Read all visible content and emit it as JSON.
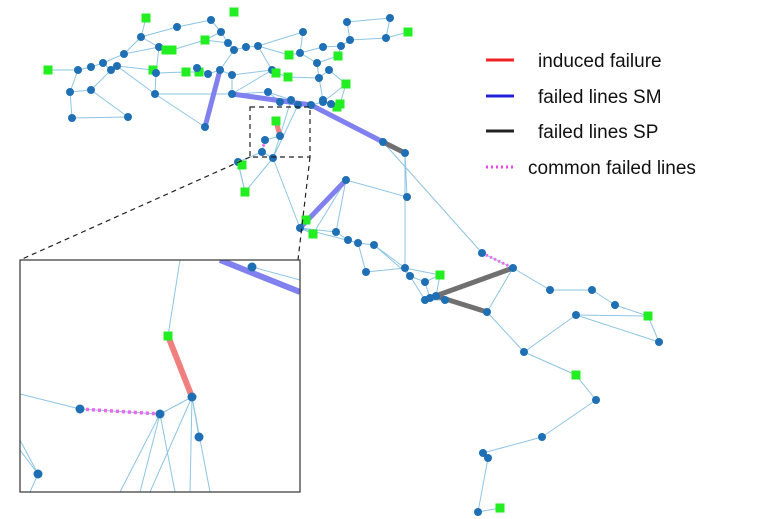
{
  "legend": [
    {
      "key": "induced_failure",
      "label": "induced failure",
      "color": "#ee2222",
      "style": "solid"
    },
    {
      "key": "failed_sm",
      "label": "failed lines SM",
      "color": "#2222dd",
      "style": "solid"
    },
    {
      "key": "failed_sp",
      "label": "failed lines SP",
      "color": "#222222",
      "style": "solid"
    },
    {
      "key": "common",
      "label": "common failed lines",
      "color": "#ee44ee",
      "style": "dotted"
    }
  ],
  "colors": {
    "edge": "#8ec5e3",
    "bus": "#1f6fb4",
    "generator": "#22ee22",
    "induced_failure": "#f08080",
    "failed_sm": "#8080ee",
    "failed_sp": "#707070",
    "common": "#ee66ee"
  },
  "node_symbols": {
    "bus": "circle",
    "generator": "square"
  }
}
